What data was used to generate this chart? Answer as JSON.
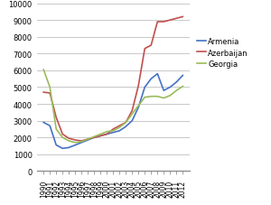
{
  "years": [
    1990,
    1991,
    1992,
    1993,
    1994,
    1995,
    1996,
    1997,
    1998,
    1999,
    2000,
    2001,
    2002,
    2003,
    2004,
    2005,
    2006,
    2007,
    2008,
    2009,
    2010,
    2011,
    2012
  ],
  "armenia": [
    2900,
    2700,
    1550,
    1350,
    1400,
    1550,
    1700,
    1850,
    2000,
    2100,
    2200,
    2300,
    2400,
    2650,
    3000,
    3800,
    5000,
    5500,
    5800,
    4800,
    5000,
    5300,
    5700
  ],
  "azerbaijan": [
    4700,
    4650,
    3200,
    2200,
    1950,
    1850,
    1800,
    1900,
    2000,
    2100,
    2200,
    2500,
    2700,
    2900,
    3600,
    5100,
    7300,
    7500,
    8900,
    8900,
    9000,
    9100,
    9200
  ],
  "georgia": [
    6050,
    5000,
    2500,
    2000,
    1800,
    1700,
    1750,
    1900,
    2050,
    2200,
    2350,
    2400,
    2600,
    2900,
    3400,
    3900,
    4400,
    4450,
    4450,
    4350,
    4500,
    4800,
    5050
  ],
  "armenia_color": "#4472c4",
  "azerbaijan_color": "#c0504d",
  "georgia_color": "#9bbb59",
  "ylim": [
    0,
    10000
  ],
  "yticks": [
    0,
    1000,
    2000,
    3000,
    4000,
    5000,
    6000,
    7000,
    8000,
    9000,
    10000
  ],
  "legend_labels": [
    "Armenia",
    "Azerbaijan",
    "Georgia"
  ],
  "background_color": "#ffffff",
  "grid_color": "#bfbfbf"
}
